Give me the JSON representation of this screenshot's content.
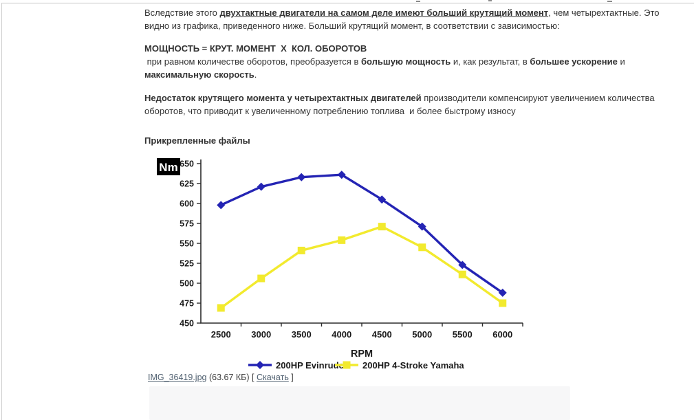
{
  "post": {
    "paragraph1": {
      "text_start": "Вследствие этого ",
      "bold_underline": "двухтактные двигатели на самом деле имеют больший крутящий момент",
      "text_end": ", чем четырехтактные. Это видно из графика, приведенного ниже. Больший крутящий момент, в соответствии с зависимостью:"
    },
    "formula": "МОЩНОСТЬ = КРУТ. МОМЕНТ  Х  КОЛ. ОБОРОТОВ",
    "paragraph2": {
      "seg1": " при равном количестве оборотов, преобразуется в ",
      "bold1": "большую мощность",
      "seg2": " и, как результат, в ",
      "bold2": "большее ускорение",
      "seg3": " и ",
      "bold3": "максимальную скорость",
      "seg4": "."
    },
    "paragraph3": {
      "bold": "Недостаток крутящего момента у четырехтактных двигателей",
      "text": " производители компенсируют увеличением количества оборотов, что приводит к увеличенному потреблению топлива  и более быстрому износу"
    },
    "attachments_heading": "Прикрепленные файлы",
    "attachment": {
      "file_link": "IMG_36419.jpg",
      "size": " (63.67 КБ) ",
      "bracket_open": "[ ",
      "download_link": "Скачать",
      "bracket_close": " ]"
    }
  },
  "chart_data": {
    "type": "line",
    "x": [
      2500,
      3000,
      3500,
      4000,
      4500,
      5000,
      5500,
      6000
    ],
    "series": [
      {
        "name": "200HP Evinrude",
        "color": "#2424b4",
        "marker": "diamond",
        "values": [
          598,
          621,
          633,
          636,
          605,
          571,
          523,
          488
        ]
      },
      {
        "name": "200HP 4-Stroke Yamaha",
        "color": "#f2ea2e",
        "marker": "square",
        "values": [
          469,
          506,
          541,
          554,
          571,
          545,
          511,
          475
        ]
      }
    ],
    "title": "",
    "xlabel": "RPM",
    "ylabel": "Nm",
    "ylim": [
      450,
      650
    ],
    "ytick_step": 25,
    "xlim": [
      2250,
      6250
    ],
    "grid": false,
    "legend_position": "bottom"
  }
}
